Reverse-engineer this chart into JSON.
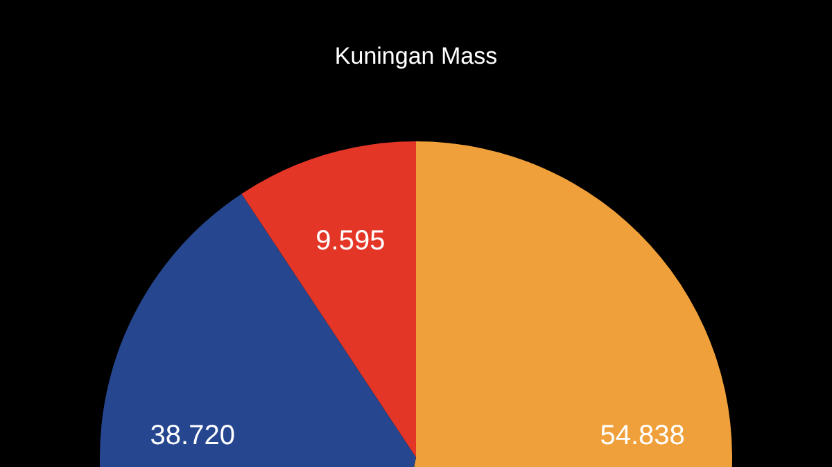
{
  "chart_data": {
    "type": "pie",
    "title": "Kuningan Mass",
    "categories": [
      null,
      null,
      null
    ],
    "values": [
      54.838,
      38.72,
      9.595
    ],
    "value_labels": [
      "54.838",
      "38.720",
      "9.595"
    ],
    "colors": [
      "#f0a03a",
      "#26468f",
      "#e43626"
    ]
  }
}
